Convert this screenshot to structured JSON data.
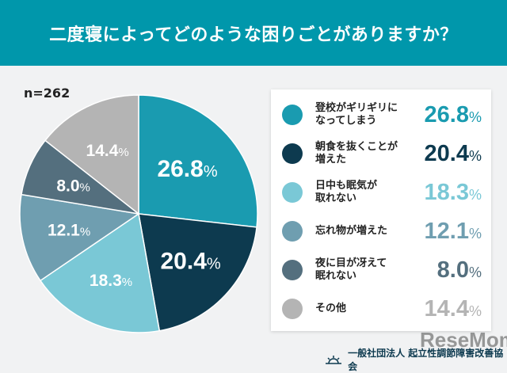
{
  "header": {
    "title": "二度寝によってどのような困りごとがありますか？"
  },
  "sample": "n=262",
  "chart_data": {
    "type": "pie",
    "title": "二度寝によってどのような困りごとがありますか？",
    "start": "12 o'clock, clockwise",
    "unit": "%",
    "slices": [
      {
        "label": "登校がギリギリになってしまう",
        "label_lines": [
          "登校がギリギリに",
          "なってしまう"
        ],
        "value": 26.8,
        "display": "26.8",
        "color": "#1a9bb0"
      },
      {
        "label": "朝食を抜くことが増えた",
        "label_lines": [
          "朝食を抜くことが",
          "増えた"
        ],
        "value": 20.4,
        "display": "20.4",
        "color": "#0d3a4f"
      },
      {
        "label": "日中も眠気が取れない",
        "label_lines": [
          "日中も眠気が",
          "取れない"
        ],
        "value": 18.3,
        "display": "18.3",
        "color": "#7ac8d6"
      },
      {
        "label": "忘れ物が増えた",
        "label_lines": [
          "忘れ物が増えた"
        ],
        "value": 12.1,
        "display": "12.1",
        "color": "#6f9eb0"
      },
      {
        "label": "夜に目が冴えて眠れない",
        "label_lines": [
          "夜に目が冴えて",
          "眠れない"
        ],
        "value": 8.0,
        "display": "8.0",
        "color": "#546f7e"
      },
      {
        "label": "その他",
        "label_lines": [
          "その他"
        ],
        "value": 14.4,
        "display": "14.4",
        "color": "#b4b4b4"
      }
    ]
  },
  "footer": {
    "organization": "一般社団法人 起立性調節障害改善協会",
    "watermark": "ReseMom"
  }
}
